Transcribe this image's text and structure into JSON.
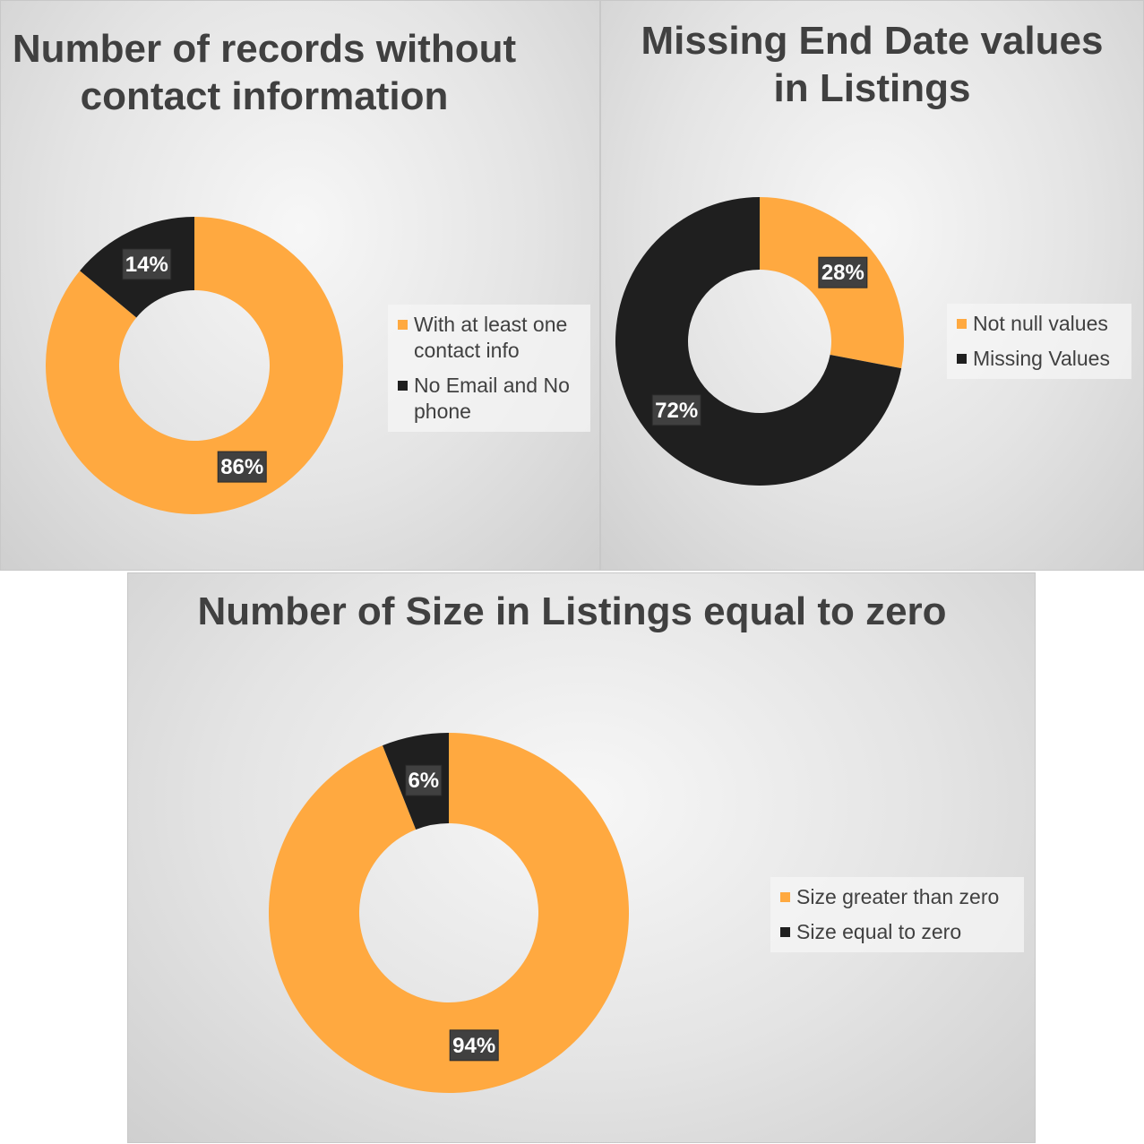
{
  "colors": {
    "orange": "#FFA940",
    "dark": "#1F1F1F"
  },
  "chart_data": [
    {
      "type": "pie",
      "title": "Number of records without contact information",
      "categories": [
        "With at least one contact info",
        "No Email and No phone"
      ],
      "values": [
        86,
        14
      ],
      "data_labels": [
        "86%",
        "14%"
      ],
      "legend_position": "right",
      "hole": true
    },
    {
      "type": "pie",
      "title": "Missing End Date values in Listings",
      "categories": [
        "Not null values",
        "Missing Values"
      ],
      "values": [
        28,
        72
      ],
      "data_labels": [
        "28%",
        "72%"
      ],
      "legend_position": "right",
      "hole": true
    },
    {
      "type": "pie",
      "title": "Number of Size in Listings equal to zero",
      "categories": [
        "Size greater than zero",
        "Size equal to zero"
      ],
      "values": [
        94,
        6
      ],
      "data_labels": [
        "94%",
        "6%"
      ],
      "legend_position": "right",
      "hole": true
    }
  ]
}
